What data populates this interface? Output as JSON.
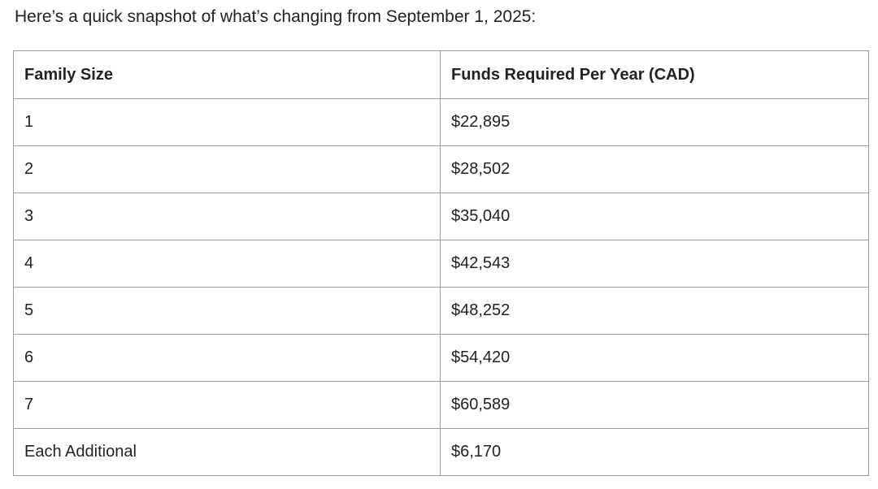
{
  "intro": "Here’s a quick snapshot of what’s changing from September 1, 2025:",
  "table": {
    "headers": [
      "Family Size",
      "Funds Required Per Year (CAD)"
    ],
    "rows": [
      [
        "1",
        "$22,895"
      ],
      [
        "2",
        "$28,502"
      ],
      [
        "3",
        "$35,040"
      ],
      [
        "4",
        "$42,543"
      ],
      [
        "5",
        "$48,252"
      ],
      [
        "6",
        "$54,420"
      ],
      [
        "7",
        "$60,589"
      ],
      [
        "Each Additional",
        "$6,170"
      ]
    ]
  }
}
